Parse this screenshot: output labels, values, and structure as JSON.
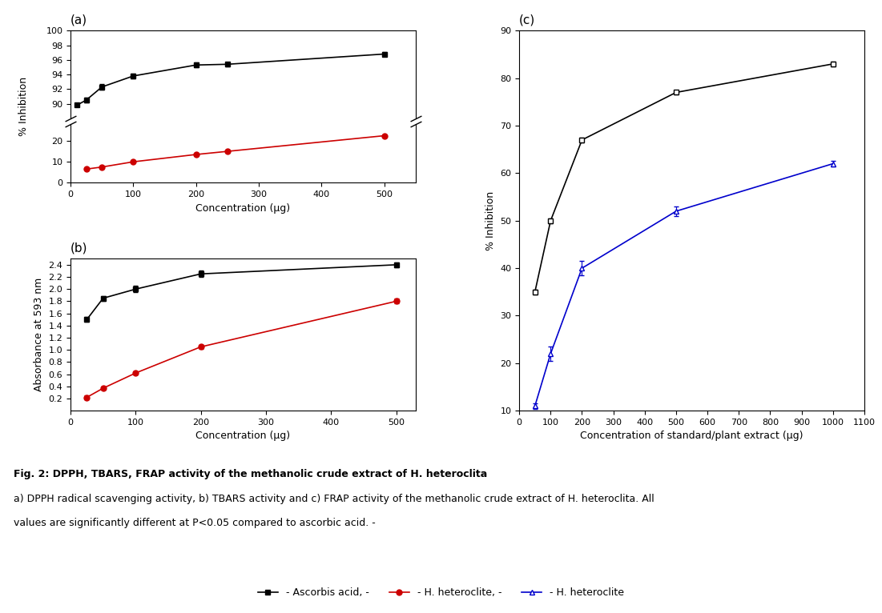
{
  "title": "Fig. 2: DPPH, TBARS, FRAP activity of the methanolic crude extract of H. heteroclita",
  "annotations": [
    "a) DPPH radical scavenging activity, b) TBARS activity and c) FRAP activity of the methanolic crude extract of H. heteroclita. All",
    "values are significantly different at P<0.05 compared to ascorbic acid. -"
  ],
  "legend": "lower center",
  "chart_data": [
    {
      "type": "line",
      "title": "(a)",
      "tick_labels": "y",
      "xlim": [
        0,
        550
      ],
      "ylim": [
        88,
        100
      ],
      "yticks": [
        90,
        92,
        94,
        96,
        98,
        100
      ],
      "series": [
        {
          "name": "- Ascorbis acid, -",
          "color": "#000000",
          "marker": "square",
          "x": [
            10,
            25,
            50,
            100,
            200,
            250,
            500
          ],
          "values": [
            89.8,
            90.5,
            92.3,
            93.8,
            95.3,
            95.4,
            96.8
          ],
          "yerr": [
            0.2,
            0.3,
            0.4,
            0.3,
            0.3,
            0.3,
            0.3
          ]
        }
      ]
    },
    {
      "type": "line",
      "xlabel": "Concentration (μg)",
      "ylabel": "% Inhibition",
      "xlim": [
        0,
        550
      ],
      "xticks": [
        0,
        100,
        200,
        300,
        400,
        500
      ],
      "ylim": [
        0,
        28
      ],
      "yticks": [
        0,
        10,
        20
      ],
      "series": [
        {
          "name": "- H. heteroclite, -",
          "color": "#cc0000",
          "marker": "circle",
          "x": [
            25,
            50,
            100,
            200,
            250,
            500
          ],
          "values": [
            6.5,
            7.5,
            10.0,
            13.5,
            15.0,
            22.5
          ],
          "yerr": [
            0.3,
            0.3,
            0.3,
            0.3,
            0.4,
            0.4
          ]
        }
      ]
    },
    {
      "type": "line",
      "title": "(b)",
      "xlabel": "Concentration (μg)",
      "ylabel": "Absorbance at 593 nm",
      "xlim": [
        0,
        530
      ],
      "xticks": [
        0,
        100,
        200,
        300,
        400,
        500
      ],
      "ylim": [
        0.0,
        2.5
      ],
      "yticks": [
        0.2,
        0.4,
        0.6,
        0.8,
        {
          "value": 1.0,
          "label": "1.0"
        },
        1.2,
        1.4,
        1.6,
        1.8,
        {
          "value": 2.0,
          "label": "2.0"
        },
        2.2,
        2.4
      ],
      "series": [
        {
          "name": "- Ascorbis acid, -",
          "color": "#000000",
          "marker": "square",
          "x": [
            25,
            50,
            100,
            200,
            500
          ],
          "values": [
            1.5,
            1.85,
            2.0,
            2.25,
            2.4
          ],
          "yerr": [
            0.04,
            0.04,
            0.05,
            0.05,
            0.04
          ]
        },
        {
          "name": "- H. heteroclite, -",
          "color": "#cc0000",
          "marker": "circle",
          "x": [
            25,
            50,
            100,
            200,
            500
          ],
          "values": [
            0.22,
            0.37,
            0.62,
            1.05,
            1.8
          ],
          "yerr": [
            0.03,
            0.03,
            0.03,
            0.03,
            0.04
          ]
        }
      ]
    },
    {
      "type": "line",
      "title": "(c)",
      "xlabel": "Concentration of standard/plant extract (μg)",
      "ylabel": "% Inhibition",
      "xlim": [
        0,
        1100
      ],
      "xticks": [
        0,
        100,
        200,
        300,
        400,
        500,
        600,
        700,
        800,
        900,
        1000,
        1100
      ],
      "ylim": [
        10,
        90
      ],
      "yticks": [
        10,
        20,
        30,
        40,
        50,
        60,
        70,
        80,
        90
      ],
      "series": [
        {
          "name": "- Ascorbis acid, -",
          "color": "#000000",
          "marker": "open_square",
          "x": [
            50,
            100,
            200,
            500,
            1000
          ],
          "values": [
            35,
            50,
            67,
            77,
            83
          ],
          "yerr": [
            0.5,
            0.5,
            0.5,
            0.5,
            0.5
          ]
        },
        {
          "name": "- H. heteroclite",
          "color": "#0000cc",
          "marker": "open_triangle_up",
          "x": [
            50,
            100,
            200,
            500,
            1000
          ],
          "values": [
            11,
            22,
            40,
            52,
            62
          ],
          "yerr": [
            0.6,
            1.5,
            1.5,
            1.0,
            0.6
          ]
        }
      ]
    }
  ]
}
